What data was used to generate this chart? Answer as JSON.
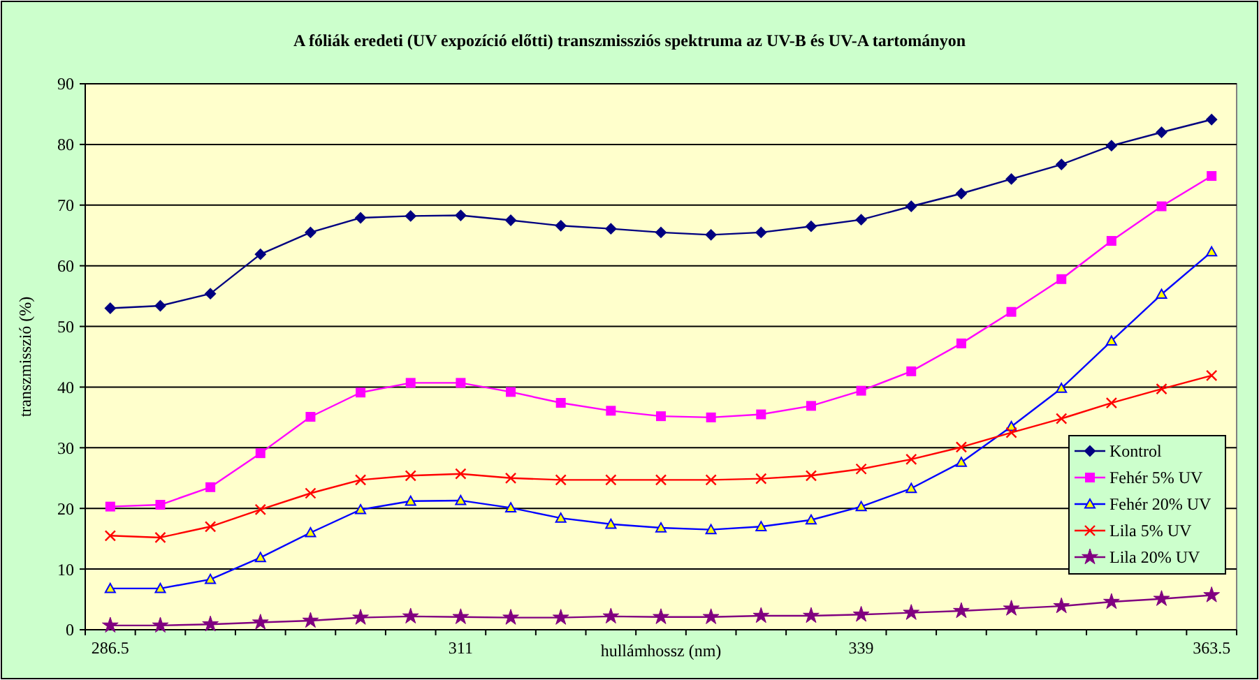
{
  "chart_data": {
    "type": "line",
    "title": "A fóliák eredeti (UV expozíció előtti) transzmissziós spektruma az UV-B és UV-A tartományon",
    "xlabel": "hullámhossz (nm)",
    "ylabel": "transzmisszió (%)",
    "categories": [
      "286.5",
      null,
      null,
      null,
      null,
      null,
      null,
      "311",
      null,
      null,
      null,
      null,
      null,
      null,
      null,
      "339",
      null,
      null,
      null,
      null,
      null,
      null,
      "363.5"
    ],
    "ylim": [
      0,
      90
    ],
    "yticks": [
      0,
      10,
      20,
      30,
      40,
      50,
      60,
      70,
      80,
      90
    ],
    "grid": "y",
    "legend": "bottom right",
    "series": [
      {
        "name": "Kontrol",
        "color": "#000080",
        "marker": "diamond",
        "values": [
          53.0,
          53.4,
          55.4,
          61.9,
          65.5,
          67.9,
          68.2,
          68.3,
          67.5,
          66.6,
          66.1,
          65.5,
          65.1,
          65.5,
          66.5,
          67.6,
          69.8,
          71.9,
          74.3,
          76.7,
          79.8,
          82.0,
          84.1
        ]
      },
      {
        "name": "Fehér 5% UV",
        "color": "#ff00ff",
        "marker": "square",
        "values": [
          20.3,
          20.6,
          23.5,
          29.1,
          35.1,
          39.1,
          40.7,
          40.7,
          39.2,
          37.4,
          36.1,
          35.2,
          35.0,
          35.5,
          36.9,
          39.4,
          42.6,
          47.2,
          52.4,
          57.8,
          64.1,
          69.8,
          74.8
        ]
      },
      {
        "name": "Fehér 20% UV",
        "color": "#0000ff",
        "marker": "triangle",
        "values": [
          6.8,
          6.8,
          8.3,
          11.9,
          16.0,
          19.8,
          21.2,
          21.3,
          20.1,
          18.4,
          17.4,
          16.8,
          16.5,
          17.0,
          18.1,
          20.3,
          23.3,
          27.6,
          33.5,
          39.8,
          47.6,
          55.3,
          62.3
        ]
      },
      {
        "name": "Lila 5% UV",
        "color": "#ff0000",
        "marker": "cross",
        "values": [
          15.5,
          15.2,
          17.0,
          19.8,
          22.5,
          24.7,
          25.4,
          25.7,
          25.0,
          24.7,
          24.7,
          24.7,
          24.7,
          24.9,
          25.4,
          26.5,
          28.1,
          30.1,
          32.5,
          34.8,
          37.4,
          39.7,
          41.9
        ]
      },
      {
        "name": "Lila 20% UV",
        "color": "#800080",
        "marker": "star",
        "values": [
          0.7,
          0.7,
          0.9,
          1.2,
          1.5,
          2.0,
          2.2,
          2.1,
          2.0,
          2.0,
          2.2,
          2.1,
          2.1,
          2.3,
          2.3,
          2.5,
          2.8,
          3.1,
          3.5,
          3.9,
          4.6,
          5.1,
          5.7
        ]
      }
    ]
  }
}
